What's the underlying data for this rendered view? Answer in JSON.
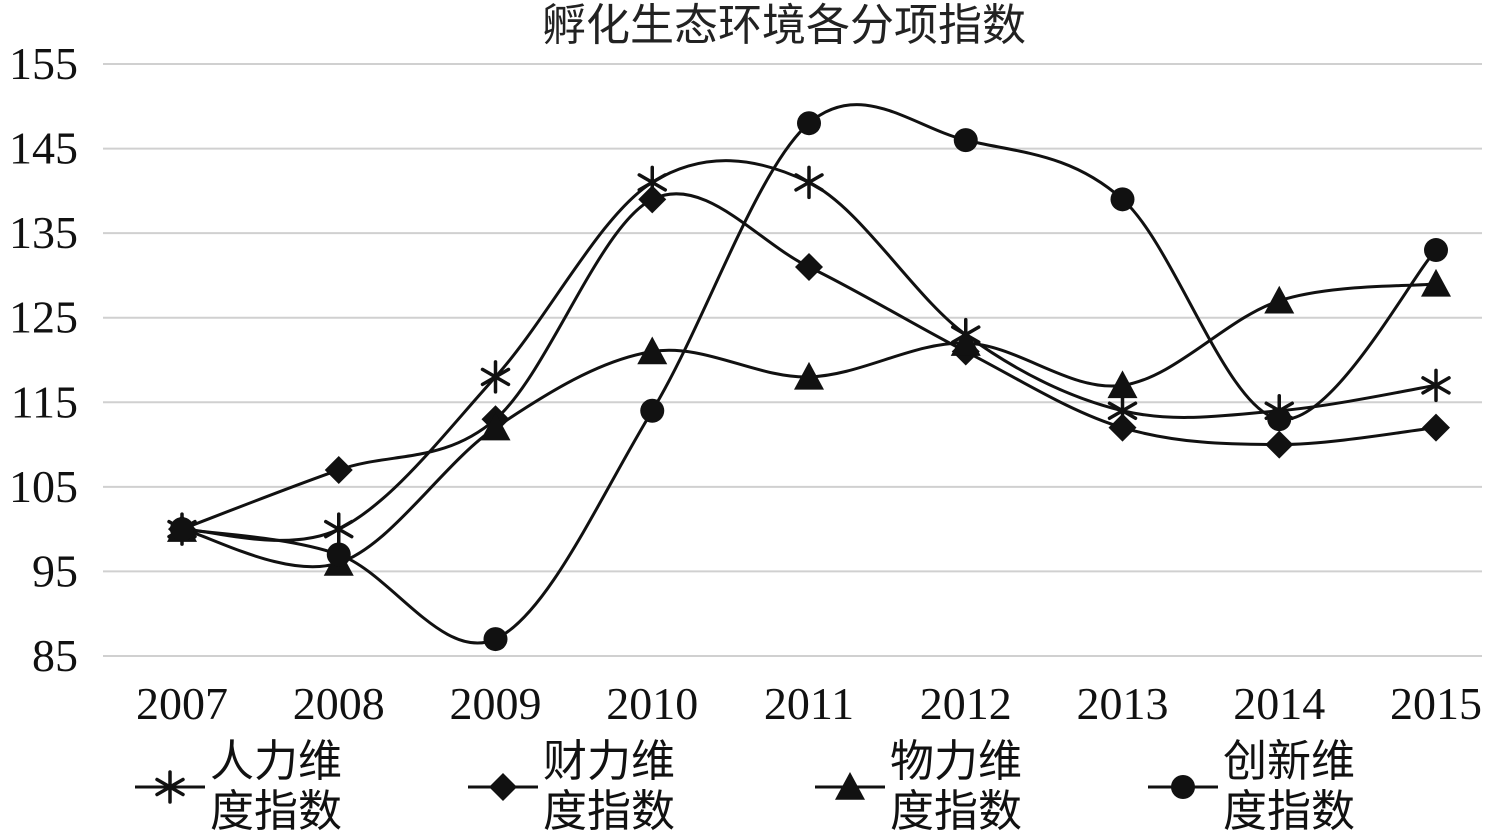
{
  "chart_data": {
    "type": "line",
    "title": "孵化生态环境各分项指数",
    "xlabel": "",
    "ylabel": "",
    "categories": [
      "2007",
      "2008",
      "2009",
      "2010",
      "2011",
      "2012",
      "2013",
      "2014",
      "2015"
    ],
    "ylim": [
      85,
      155
    ],
    "yticks": [
      85,
      95,
      105,
      115,
      125,
      135,
      145,
      155
    ],
    "grid": true,
    "smooth": true,
    "legend_position": "bottom",
    "series": [
      {
        "name": "人力维度指数",
        "marker": "asterisk",
        "values": [
          100,
          100,
          118,
          141,
          141,
          123,
          114,
          114,
          117
        ],
        "color": "#111111"
      },
      {
        "name": "财力维度指数",
        "marker": "diamond",
        "values": [
          100,
          107,
          113,
          139,
          131,
          121,
          112,
          110,
          112
        ],
        "color": "#111111"
      },
      {
        "name": "物力维度指数",
        "marker": "triangle",
        "values": [
          100,
          96,
          112,
          121,
          118,
          122,
          117,
          127,
          129
        ],
        "color": "#111111"
      },
      {
        "name": "创新维度指数",
        "marker": "circle",
        "values": [
          100,
          97,
          87,
          114,
          148,
          146,
          139,
          113,
          133
        ],
        "color": "#111111"
      }
    ]
  }
}
